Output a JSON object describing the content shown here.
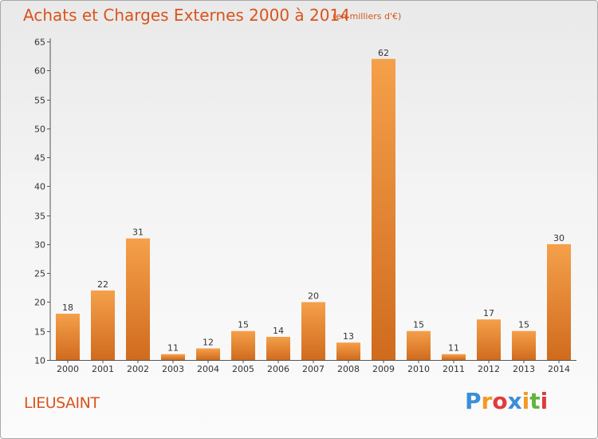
{
  "chart_data": {
    "type": "bar",
    "title": "Achats et Charges Externes 2000 à 2014",
    "subtitle": "(en milliers d'€)",
    "categories": [
      "2000",
      "2001",
      "2002",
      "2003",
      "2004",
      "2005",
      "2006",
      "2007",
      "2008",
      "2009",
      "2010",
      "2011",
      "2012",
      "2013",
      "2014"
    ],
    "values": [
      18,
      22,
      31,
      11,
      12,
      15,
      14,
      20,
      13,
      62,
      15,
      11,
      17,
      15,
      30
    ],
    "ylim": [
      10,
      65
    ],
    "yticks": [
      10,
      15,
      20,
      25,
      30,
      35,
      40,
      45,
      50,
      55,
      60,
      65
    ],
    "grid": false,
    "bar_color_top": "#f5a04a",
    "bar_color_bottom": "#d06b1e"
  },
  "footer": {
    "commune": "LIEUSAINT",
    "logo_letters": [
      "P",
      "r",
      "o",
      "x",
      "i",
      "t",
      "i"
    ],
    "logo_colors": [
      "#3a8fd6",
      "#f39a21",
      "#e23a3a",
      "#3a8fd6",
      "#f39a21",
      "#62b43c",
      "#e23a3a"
    ]
  }
}
